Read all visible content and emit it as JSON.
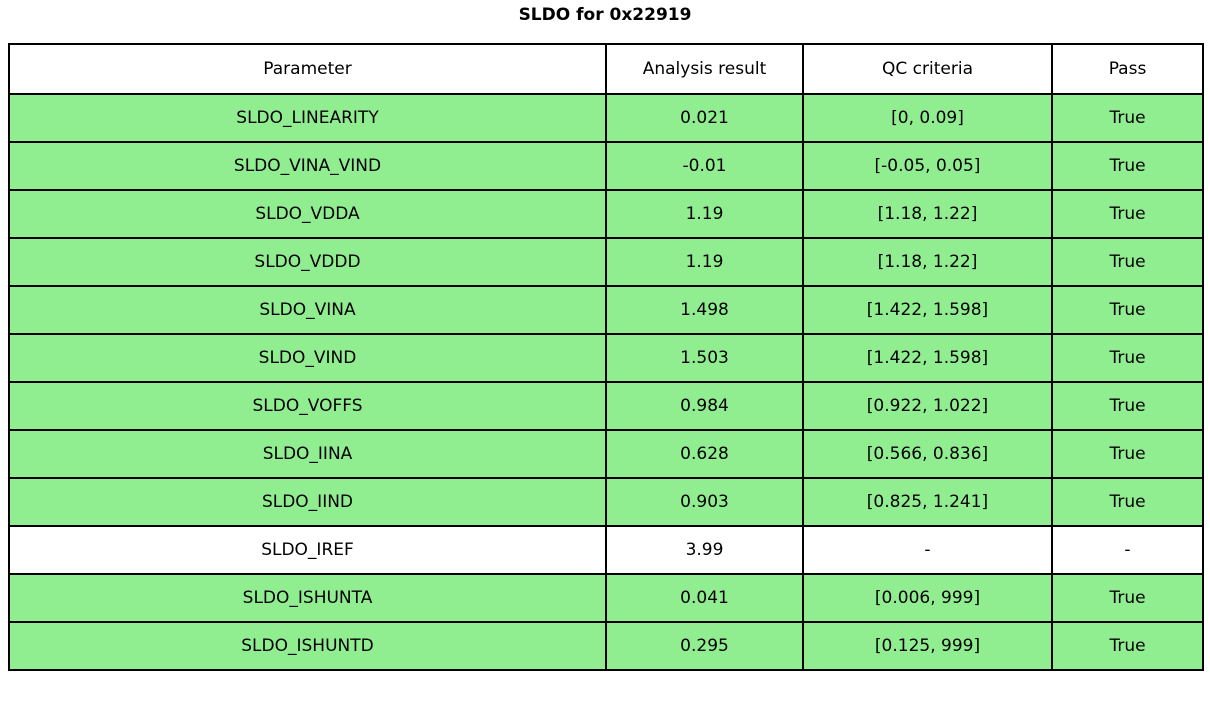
{
  "title": "SLDO for 0x22919",
  "colors": {
    "pass_row_bg": "#90ee90",
    "neutral_row_bg": "#ffffff",
    "border": "#000000",
    "header_bg": "#ffffff",
    "text": "#000000"
  },
  "chart_data": {
    "type": "table",
    "title": "SLDO for 0x22919",
    "columns": [
      "Parameter",
      "Analysis result",
      "QC criteria",
      "Pass"
    ],
    "rows": [
      [
        "SLDO_LINEARITY",
        "0.021",
        "[0, 0.09]",
        "True"
      ],
      [
        "SLDO_VINA_VIND",
        "-0.01",
        "[-0.05, 0.05]",
        "True"
      ],
      [
        "SLDO_VDDA",
        "1.19",
        "[1.18, 1.22]",
        "True"
      ],
      [
        "SLDO_VDDD",
        "1.19",
        "[1.18, 1.22]",
        "True"
      ],
      [
        "SLDO_VINA",
        "1.498",
        "[1.422, 1.598]",
        "True"
      ],
      [
        "SLDO_VIND",
        "1.503",
        "[1.422, 1.598]",
        "True"
      ],
      [
        "SLDO_VOFFS",
        "0.984",
        "[0.922, 1.022]",
        "True"
      ],
      [
        "SLDO_IINA",
        "0.628",
        "[0.566, 0.836]",
        "True"
      ],
      [
        "SLDO_IIND",
        "0.903",
        "[0.825, 1.241]",
        "True"
      ],
      [
        "SLDO_IREF",
        "3.99",
        "-",
        "-"
      ],
      [
        "SLDO_ISHUNTA",
        "0.041",
        "[0.006, 999]",
        "True"
      ],
      [
        "SLDO_ISHUNTD",
        "0.295",
        "[0.125, 999]",
        "True"
      ]
    ],
    "row_highlight": [
      true,
      true,
      true,
      true,
      true,
      true,
      true,
      true,
      true,
      false,
      true,
      true
    ],
    "layout_hints": {
      "highlight_meaning": "green row = QC passed, white row = no QC criteria applied",
      "grid": true,
      "header_position": "top"
    }
  }
}
